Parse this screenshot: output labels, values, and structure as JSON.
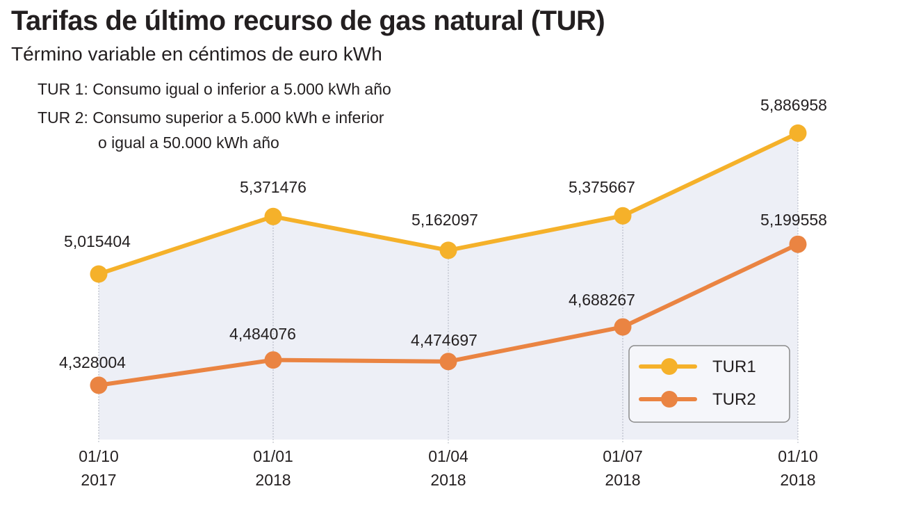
{
  "chart_data": {
    "type": "line",
    "title": "Tarifas de último recurso de gas natural (TUR)",
    "subtitle": "Término variable en céntimos de euro kWh",
    "notes": [
      "TUR 1: Consumo igual o inferior a 5.000 kWh año",
      "TUR 2: Consumo superior a 5.000 kWh e inferior",
      "o igual a 50.000 kWh año"
    ],
    "categories": [
      {
        "line1": "01/10",
        "line2": "2017"
      },
      {
        "line1": "01/01",
        "line2": "2018"
      },
      {
        "line1": "01/04",
        "line2": "2018"
      },
      {
        "line1": "01/07",
        "line2": "2018"
      },
      {
        "line1": "01/10",
        "line2": "2018"
      }
    ],
    "series": [
      {
        "name": "TUR1",
        "values": [
          5.015404,
          5.371476,
          5.162097,
          5.375667,
          5.886958
        ],
        "labels": [
          "5,015404",
          "5,371476",
          "5,162097",
          "5,375667",
          "5,886958"
        ],
        "color": "#f5b12a"
      },
      {
        "name": "TUR2",
        "values": [
          4.328004,
          4.484076,
          4.474697,
          4.688267,
          5.199558
        ],
        "labels": [
          "4,328004",
          "4,484076",
          "4,474697",
          "4,688267",
          "5,199558"
        ],
        "color": "#ea8442"
      }
    ],
    "area_fill": "#edeff6",
    "legend_position": "bottom-right",
    "ylim": [
      3.992,
      6.065
    ]
  }
}
